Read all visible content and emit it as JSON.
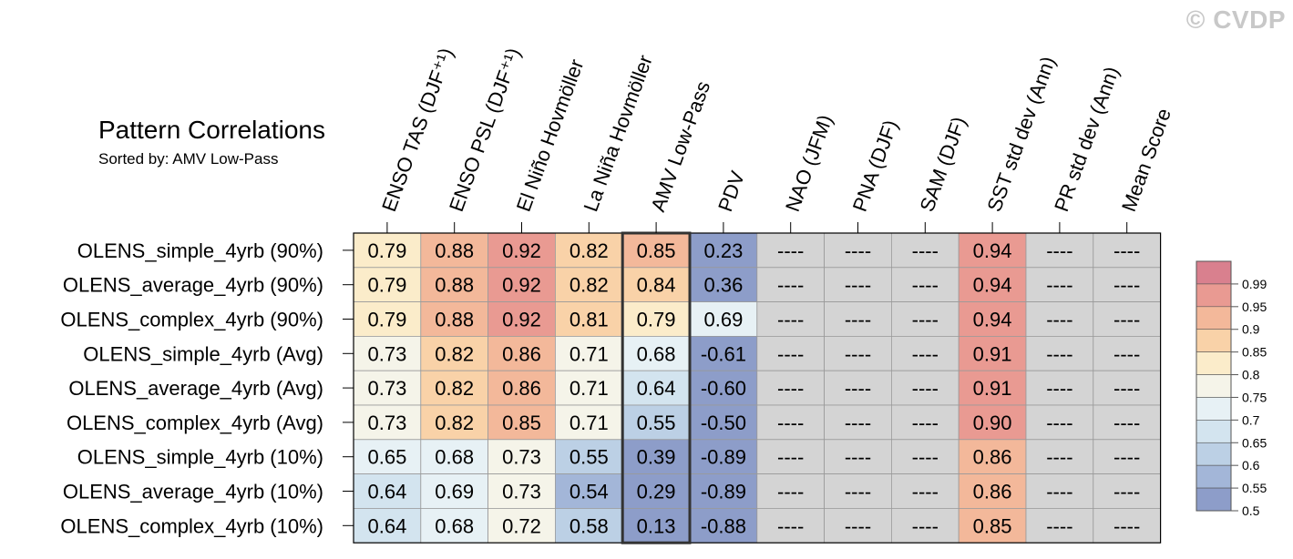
{
  "watermark": "© CVDP",
  "title": "Pattern Correlations",
  "subtitle": "Sorted by: AMV Low-Pass",
  "colors": {
    "na_cell": "#d4d4d4",
    "grid_line": "#9a9a9a",
    "frame": "#000000",
    "highlight_border": "#333333",
    "scale": [
      "#8d9dc9",
      "#a3b6d8",
      "#bcd0e5",
      "#d3e4ef",
      "#e7f1f5",
      "#f5f4e9",
      "#fbecca",
      "#f9d2a8",
      "#f3b89a",
      "#e99a92",
      "#d9808e"
    ]
  },
  "chart_data": {
    "type": "heatmap",
    "title": "Pattern Correlations",
    "subtitle": "Sorted by: AMV Low-Pass",
    "columns": [
      "ENSO TAS (DJF⁺¹)",
      "ENSO PSL (DJF⁺¹)",
      "El Niño Hovmöller",
      "La Niña Hovmöller",
      "AMV Low-Pass",
      "PDV",
      "NAO (JFM)",
      "PNA (DJF)",
      "SAM (DJF)",
      "SST std dev (Ann)",
      "PR std dev (Ann)",
      "Mean Score"
    ],
    "rows": [
      "OLENS_simple_4yrb (90%)",
      "OLENS_average_4yrb (90%)",
      "OLENS_complex_4yrb (90%)",
      "OLENS_simple_4yrb (Avg)",
      "OLENS_average_4yrb (Avg)",
      "OLENS_complex_4yrb (Avg)",
      "OLENS_simple_4yrb (10%)",
      "OLENS_average_4yrb (10%)",
      "OLENS_complex_4yrb (10%)"
    ],
    "values": [
      [
        "0.79",
        "0.88",
        "0.92",
        "0.82",
        "0.85",
        "0.23",
        "----",
        "----",
        "----",
        "0.94",
        "----",
        "----"
      ],
      [
        "0.79",
        "0.88",
        "0.92",
        "0.82",
        "0.84",
        "0.36",
        "----",
        "----",
        "----",
        "0.94",
        "----",
        "----"
      ],
      [
        "0.79",
        "0.88",
        "0.92",
        "0.81",
        "0.79",
        "0.69",
        "----",
        "----",
        "----",
        "0.94",
        "----",
        "----"
      ],
      [
        "0.73",
        "0.82",
        "0.86",
        "0.71",
        "0.68",
        "-0.61",
        "----",
        "----",
        "----",
        "0.91",
        "----",
        "----"
      ],
      [
        "0.73",
        "0.82",
        "0.86",
        "0.71",
        "0.64",
        "-0.60",
        "----",
        "----",
        "----",
        "0.91",
        "----",
        "----"
      ],
      [
        "0.73",
        "0.82",
        "0.85",
        "0.71",
        "0.55",
        "-0.50",
        "----",
        "----",
        "----",
        "0.90",
        "----",
        "----"
      ],
      [
        "0.65",
        "0.68",
        "0.73",
        "0.55",
        "0.39",
        "-0.89",
        "----",
        "----",
        "----",
        "0.86",
        "----",
        "----"
      ],
      [
        "0.64",
        "0.69",
        "0.73",
        "0.54",
        "0.29",
        "-0.89",
        "----",
        "----",
        "----",
        "0.86",
        "----",
        "----"
      ],
      [
        "0.64",
        "0.68",
        "0.72",
        "0.58",
        "0.13",
        "-0.88",
        "----",
        "----",
        "----",
        "0.85",
        "----",
        "----"
      ]
    ],
    "highlight_column": "AMV Low-Pass",
    "missing_marker": "----",
    "colorbar": {
      "labels": [
        "0.99",
        "0.95",
        "0.9",
        "0.85",
        "0.8",
        "0.75",
        "0.7",
        "0.65",
        "0.6",
        "0.55",
        "0.5"
      ],
      "thresholds": [
        0.5,
        0.55,
        0.6,
        0.65,
        0.7,
        0.75,
        0.8,
        0.85,
        0.9,
        0.95,
        0.99
      ]
    }
  }
}
